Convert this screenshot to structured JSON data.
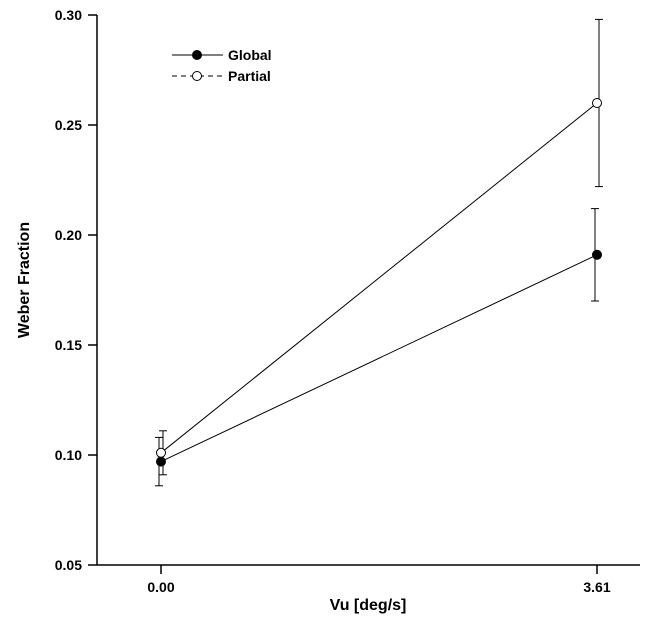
{
  "chart_data": {
    "type": "line",
    "xlabel": "Vu [deg/s]",
    "ylabel": "Weber Fraction",
    "x": [
      "0.00",
      "3.61"
    ],
    "ylim": [
      0.05,
      0.3
    ],
    "yticks": [
      "0.05",
      "0.10",
      "0.15",
      "0.20",
      "0.25",
      "0.30"
    ],
    "grid": false,
    "legend_position": "top-left",
    "series": [
      {
        "name": "Global",
        "marker": "filled-circle",
        "line": "solid",
        "values": [
          0.097,
          0.191
        ],
        "error_low": [
          0.086,
          0.17
        ],
        "error_high": [
          0.108,
          0.212
        ]
      },
      {
        "name": "Partial",
        "marker": "open-circle",
        "line": "solid",
        "legend_line": "dashed",
        "values": [
          0.101,
          0.26
        ],
        "error_low": [
          0.091,
          0.222
        ],
        "error_high": [
          0.111,
          0.298
        ]
      }
    ]
  }
}
